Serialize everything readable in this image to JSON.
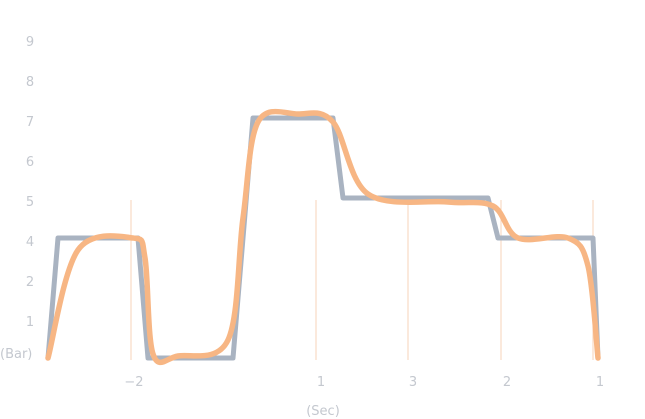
{
  "chart_data": {
    "type": "line",
    "title": "",
    "xlabel": "(Sec)",
    "ylabel": "(Bar)",
    "ylim": [
      0,
      9
    ],
    "y_ticks": [
      "1",
      "2",
      "4",
      "5",
      "6",
      "7",
      "8",
      "9"
    ],
    "x_ticks": [
      "-2",
      "1",
      "3",
      "2",
      "1"
    ],
    "grid": false,
    "colors": {
      "step": "#a9b3c1",
      "smooth": "#f7b684",
      "guide": "#f7d3b8",
      "tick": "#c4c8cf"
    },
    "series": [
      {
        "style": "step",
        "color": "#a9b3c1",
        "points": [
          [
            0,
            0
          ],
          [
            0.1,
            3
          ],
          [
            0.9,
            3
          ],
          [
            1.0,
            0
          ],
          [
            1.85,
            0
          ],
          [
            2.05,
            6
          ],
          [
            2.85,
            6
          ],
          [
            2.95,
            4
          ],
          [
            4.4,
            4
          ],
          [
            4.5,
            3
          ],
          [
            5.45,
            3
          ],
          [
            5.5,
            0
          ]
        ]
      },
      {
        "style": "smooth",
        "color": "#f7b684",
        "points": [
          [
            0,
            0
          ],
          [
            0.3,
            2.7
          ],
          [
            0.85,
            3.0
          ],
          [
            0.97,
            2.5
          ],
          [
            1.05,
            0.1
          ],
          [
            1.3,
            0.05
          ],
          [
            1.8,
            0.45
          ],
          [
            1.95,
            3.5
          ],
          [
            2.1,
            5.9
          ],
          [
            2.5,
            6.1
          ],
          [
            2.85,
            5.9
          ],
          [
            3.2,
            4.1
          ],
          [
            4.0,
            3.9
          ],
          [
            4.45,
            3.8
          ],
          [
            4.7,
            3.0
          ],
          [
            5.2,
            3.0
          ],
          [
            5.4,
            2.3
          ],
          [
            5.5,
            0
          ]
        ]
      }
    ]
  }
}
